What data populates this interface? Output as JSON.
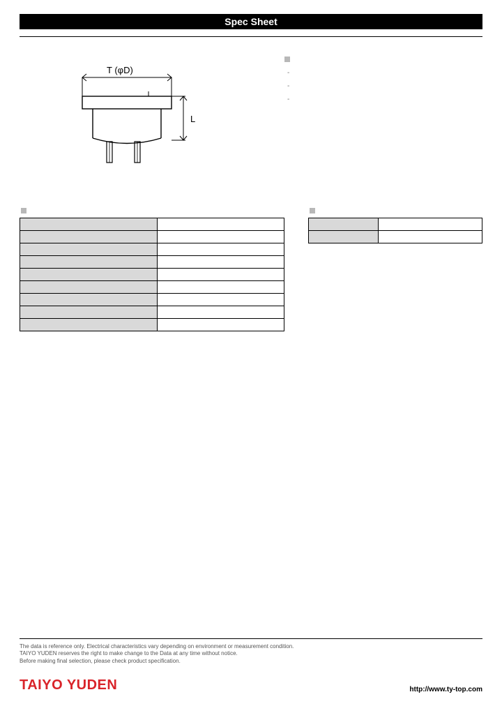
{
  "title_bar": "Spec Sheet",
  "diagram": {
    "label_top": "T (φD)",
    "label_right": "L"
  },
  "features": {
    "heading": "",
    "items": [
      "-",
      "-",
      "-"
    ]
  },
  "spec": {
    "heading": "",
    "rows": [
      {
        "label": "",
        "value": ""
      },
      {
        "label": "",
        "value": ""
      },
      {
        "label": "",
        "value": ""
      },
      {
        "label": "",
        "value": ""
      },
      {
        "label": "",
        "value": ""
      },
      {
        "label": "",
        "value": ""
      },
      {
        "label": "",
        "value": ""
      },
      {
        "label": "",
        "value": ""
      },
      {
        "label": "",
        "value": ""
      }
    ]
  },
  "packaging": {
    "heading": "",
    "rows": [
      {
        "label": "",
        "value": ""
      },
      {
        "label": "",
        "value": ""
      }
    ]
  },
  "footer": {
    "disclaimer_lines": [
      "The data is reference only. Electrical characteristics vary depending on environment or measurement condition.",
      "TAIYO YUDEN reserves the right to make change to the Data at any time without notice.",
      "Before making final selection, please check product specification."
    ],
    "brand": "TAIYO YUDEN",
    "url": "http://www.ty-top.com"
  },
  "colors": {
    "brand_red": "#d9242a",
    "cell_grey": "#d9d9d9",
    "bullet_grey": "#b8b8b8"
  }
}
